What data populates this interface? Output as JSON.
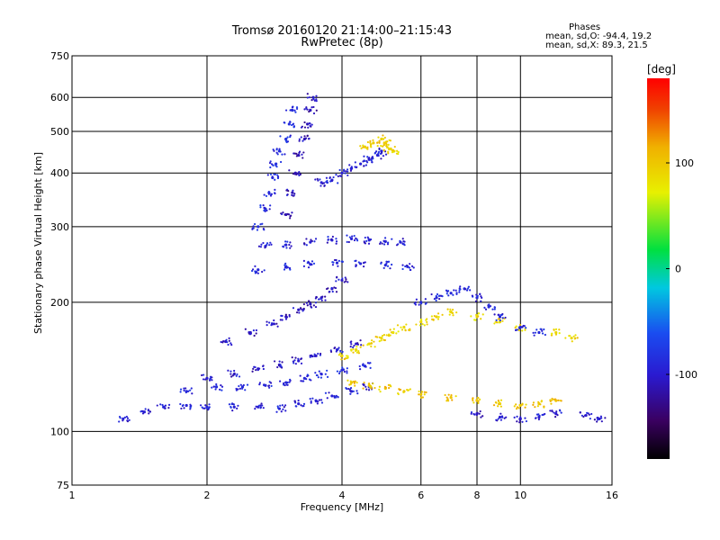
{
  "header": {
    "title_line1": "Tromsø 20160120 21:14:00–21:15:43",
    "title_line2": "RwPretec (8p)"
  },
  "stats": {
    "heading": "Phases",
    "o_line": "mean, sd,O: -94.4, 19.2",
    "x_line": "mean, sd,X: 89.3, 21.5"
  },
  "colorbar": {
    "label": "[deg]",
    "range": [
      -180,
      180
    ],
    "ticks": [
      {
        "value": 100,
        "label": "100"
      },
      {
        "value": 0,
        "label": "0"
      },
      {
        "value": -100,
        "label": "-100"
      }
    ]
  },
  "chart_data": {
    "type": "scatter",
    "title": "Tromsø 20160120 21:14:00–21:15:43",
    "subtitle": "RwPretec (8p)",
    "xlabel": "Frequency [MHz]",
    "ylabel": "Stationary phase Virtual Height [km]",
    "x_scale": "log",
    "y_scale": "log",
    "xlim": [
      1,
      16
    ],
    "ylim": [
      75,
      750
    ],
    "xticks": [
      1,
      2,
      4,
      6,
      8,
      10,
      16
    ],
    "yticks": [
      75,
      100,
      200,
      300,
      400,
      500,
      600,
      750
    ],
    "grid": true,
    "color_encoding": "phase [deg], -180 to 180",
    "series": [
      {
        "trace": "low E-region trace",
        "color_phase": -95,
        "points": [
          [
            1.3,
            107
          ],
          [
            1.45,
            111
          ],
          [
            1.6,
            114
          ],
          [
            1.8,
            115
          ],
          [
            2.0,
            114
          ],
          [
            2.3,
            114
          ],
          [
            2.6,
            114
          ],
          [
            2.9,
            113
          ],
          [
            3.2,
            116
          ],
          [
            3.5,
            118
          ],
          [
            3.8,
            121
          ],
          [
            4.2,
            124
          ],
          [
            4.6,
            127
          ]
        ]
      },
      {
        "trace": "second hop trace",
        "color_phase": -90,
        "points": [
          [
            1.8,
            124
          ],
          [
            2.1,
            127
          ],
          [
            2.4,
            127
          ],
          [
            2.7,
            128
          ],
          [
            3.0,
            130
          ],
          [
            3.3,
            133
          ],
          [
            3.6,
            136
          ],
          [
            4.0,
            139
          ],
          [
            4.5,
            142
          ]
        ]
      },
      {
        "trace": "lower oblique trace",
        "color_phase": -100,
        "points": [
          [
            2.0,
            133
          ],
          [
            2.3,
            136
          ],
          [
            2.6,
            140
          ],
          [
            2.9,
            143
          ],
          [
            3.2,
            146
          ],
          [
            3.5,
            150
          ],
          [
            3.9,
            155
          ],
          [
            4.3,
            160
          ]
        ]
      },
      {
        "trace": "F-region lower trace",
        "color_phase": -105,
        "points": [
          [
            2.2,
            162
          ],
          [
            2.5,
            170
          ],
          [
            2.8,
            178
          ],
          [
            3.0,
            185
          ],
          [
            3.2,
            192
          ],
          [
            3.4,
            198
          ],
          [
            3.6,
            205
          ],
          [
            3.8,
            215
          ],
          [
            4.0,
            225
          ]
        ]
      },
      {
        "trace": "F-region 270 km band",
        "color_phase": -95,
        "points": [
          [
            2.7,
            270
          ],
          [
            3.0,
            272
          ],
          [
            3.4,
            276
          ],
          [
            3.8,
            279
          ],
          [
            4.2,
            281
          ],
          [
            4.6,
            279
          ],
          [
            5.0,
            277
          ],
          [
            5.4,
            276
          ]
        ]
      },
      {
        "trace": "F-region 240 km band",
        "color_phase": -90,
        "points": [
          [
            2.6,
            238
          ],
          [
            3.0,
            242
          ],
          [
            3.4,
            245
          ],
          [
            3.9,
            247
          ],
          [
            4.4,
            246
          ],
          [
            5.0,
            244
          ],
          [
            5.6,
            242
          ]
        ]
      },
      {
        "trace": "steep lower-frequency F trace",
        "color_phase": -85,
        "points": [
          [
            2.6,
            300
          ],
          [
            2.7,
            330
          ],
          [
            2.75,
            360
          ],
          [
            2.8,
            390
          ],
          [
            2.85,
            420
          ],
          [
            2.9,
            450
          ],
          [
            3.0,
            480
          ],
          [
            3.05,
            520
          ],
          [
            3.1,
            560
          ]
        ]
      },
      {
        "trace": "steep F trace",
        "color_phase": -110,
        "points": [
          [
            3.0,
            320
          ],
          [
            3.1,
            360
          ],
          [
            3.15,
            400
          ],
          [
            3.2,
            440
          ],
          [
            3.3,
            480
          ],
          [
            3.35,
            520
          ],
          [
            3.4,
            560
          ],
          [
            3.45,
            600
          ]
        ]
      },
      {
        "trace": "4 MHz cluster",
        "color_phase": -95,
        "points": [
          [
            3.6,
            380
          ],
          [
            3.8,
            385
          ],
          [
            4.0,
            400
          ],
          [
            4.2,
            410
          ],
          [
            4.4,
            420
          ],
          [
            4.6,
            430
          ],
          [
            4.8,
            440
          ],
          [
            4.9,
            450
          ]
        ]
      },
      {
        "trace": "yellow X-mode cluster",
        "color_phase": 95,
        "points": [
          [
            4.5,
            460
          ],
          [
            4.7,
            470
          ],
          [
            4.9,
            480
          ],
          [
            5.0,
            470
          ],
          [
            5.1,
            455
          ],
          [
            5.2,
            450
          ]
        ]
      },
      {
        "trace": "X-mode mid heights",
        "color_phase": 90,
        "points": [
          [
            4.0,
            150
          ],
          [
            4.3,
            155
          ],
          [
            4.6,
            160
          ],
          [
            4.9,
            165
          ],
          [
            5.2,
            170
          ],
          [
            5.5,
            175
          ],
          [
            6.0,
            180
          ],
          [
            6.5,
            185
          ],
          [
            7.0,
            190
          ],
          [
            8.0,
            185
          ],
          [
            9.0,
            180
          ],
          [
            10.0,
            175
          ],
          [
            12.0,
            170
          ],
          [
            13.0,
            165
          ]
        ]
      },
      {
        "trace": "X-mode lower heights",
        "color_phase": 100,
        "points": [
          [
            4.2,
            130
          ],
          [
            4.6,
            128
          ],
          [
            5.0,
            126
          ],
          [
            5.5,
            124
          ],
          [
            6.0,
            122
          ],
          [
            7.0,
            120
          ],
          [
            8.0,
            118
          ],
          [
            9.0,
            116
          ],
          [
            10.0,
            115
          ],
          [
            11.0,
            116
          ],
          [
            12.0,
            118
          ]
        ]
      },
      {
        "trace": "high frequency F trace",
        "color_phase": -90,
        "points": [
          [
            6.0,
            200
          ],
          [
            6.5,
            205
          ],
          [
            7.0,
            210
          ],
          [
            7.5,
            215
          ],
          [
            8.0,
            205
          ],
          [
            8.5,
            195
          ],
          [
            9.0,
            185
          ],
          [
            10.0,
            175
          ],
          [
            11.0,
            170
          ]
        ]
      },
      {
        "trace": "high frequency low trace",
        "color_phase": -100,
        "points": [
          [
            8.0,
            110
          ],
          [
            9.0,
            108
          ],
          [
            10.0,
            107
          ],
          [
            11.0,
            108
          ],
          [
            12.0,
            110
          ],
          [
            14.0,
            109
          ],
          [
            15.0,
            107
          ]
        ]
      }
    ]
  }
}
